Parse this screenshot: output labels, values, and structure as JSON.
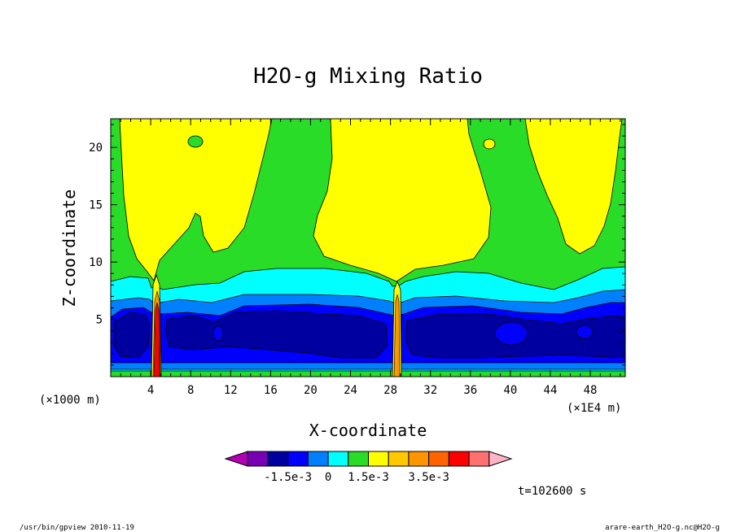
{
  "chart_data": {
    "type": "heatmap",
    "title": "H2O-g Mixing Ratio",
    "xlabel": "X-coordinate",
    "ylabel": "Z-coordinate",
    "x_unit_left": "(×1000 m)",
    "x_unit_right": "(×1E4 m)",
    "xlim": [
      0,
      51.5
    ],
    "ylim": [
      0,
      22.5
    ],
    "xticks": [
      4,
      8,
      12,
      16,
      20,
      24,
      28,
      32,
      36,
      40,
      44,
      48
    ],
    "yticks": [
      5,
      10,
      15,
      20
    ],
    "time_label": "t=102600 s",
    "colorbar": {
      "colors": [
        "#b400b4",
        "#7800b4",
        "#0000a0",
        "#0000ff",
        "#0080ff",
        "#00ffff",
        "#28dc28",
        "#ffff00",
        "#ffc800",
        "#ff9600",
        "#ff6400",
        "#ff0000",
        "#ff7070",
        "#ffb4c8"
      ],
      "tick_labels": [
        "-1.5e-3",
        "0",
        "1.5e-3",
        "3.5e-3"
      ]
    },
    "colors": {
      "negative_deep": "#0000a0",
      "negative_mid": "#0000ff",
      "negative_shallow": "#0080ff",
      "near_zero": "#00ffff",
      "zero_band": "#28dc28",
      "positive_low": "#ffff00",
      "positive_high": "#ff0000"
    }
  },
  "footer": {
    "left": "/usr/bin/gpview   2010-11-19",
    "right": "arare-earth_H2O-g.nc@H2O-g"
  }
}
